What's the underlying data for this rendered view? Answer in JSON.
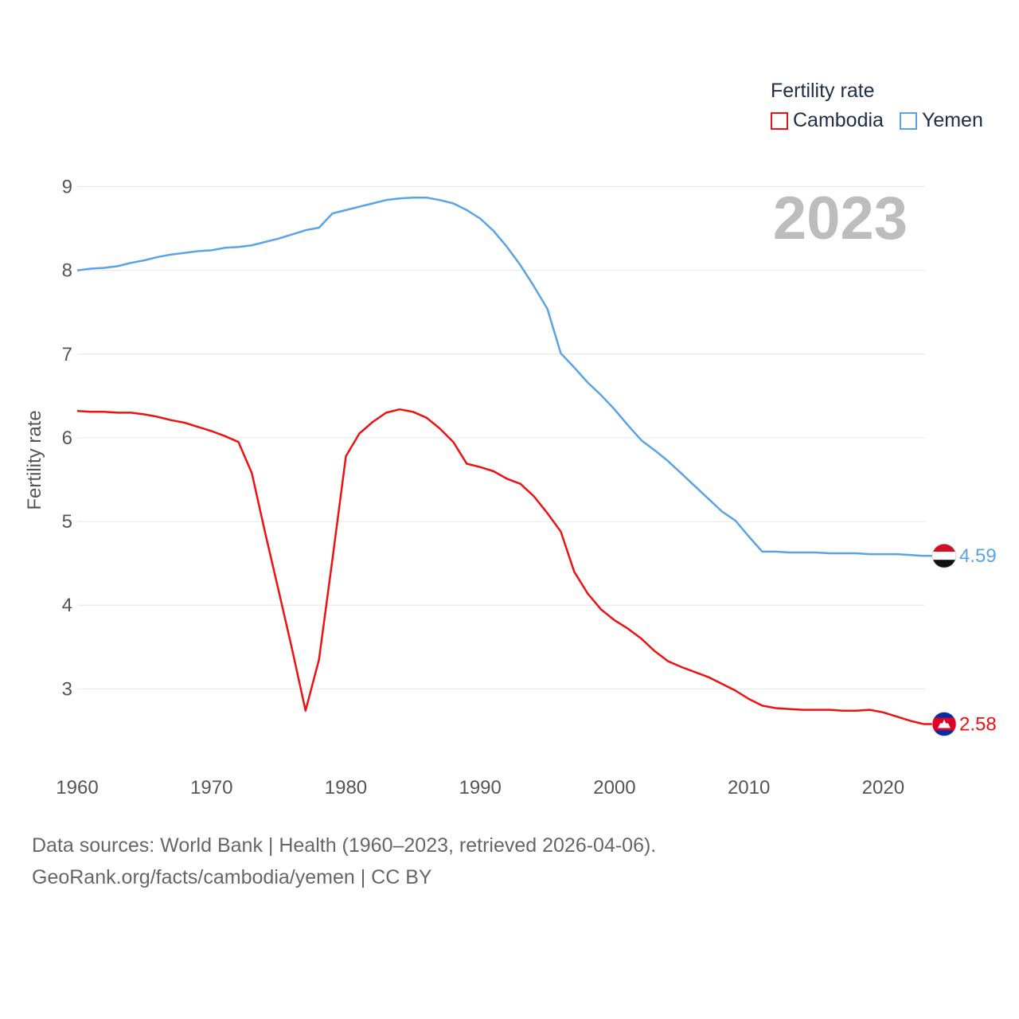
{
  "colors": {
    "cambodia": "#ee1111",
    "yemen": "#5aa3e6",
    "grid": "#e6e6e6",
    "text": "#555555"
  },
  "legend": {
    "title": "Fertility rate",
    "items": [
      {
        "label": "Cambodia",
        "color": "#ee1111"
      },
      {
        "label": "Yemen",
        "color": "#5aa3e6"
      }
    ]
  },
  "sources": {
    "line1": "Data sources: World Bank | Health (1960–2023, retrieved 2026-04-06).",
    "line2": "GeoRank.org/facts/cambodia/yemen | CC BY"
  },
  "chart_data": {
    "type": "line",
    "title": "Fertility rate",
    "year_label": "2023",
    "xlabel": "",
    "ylabel": "Fertility rate",
    "xlim": [
      1960,
      2023
    ],
    "ylim": [
      2,
      9
    ],
    "xticks": [
      1960,
      1970,
      1980,
      1990,
      2000,
      2010,
      2020
    ],
    "yticks": [
      3,
      4,
      5,
      6,
      7,
      8,
      9
    ],
    "grid": true,
    "legend_position": "top-right",
    "x": [
      1960,
      1961,
      1962,
      1963,
      1964,
      1965,
      1966,
      1967,
      1968,
      1969,
      1970,
      1971,
      1972,
      1973,
      1974,
      1975,
      1976,
      1977,
      1978,
      1979,
      1980,
      1981,
      1982,
      1983,
      1984,
      1985,
      1986,
      1987,
      1988,
      1989,
      1990,
      1991,
      1992,
      1993,
      1994,
      1995,
      1996,
      1997,
      1998,
      1999,
      2000,
      2001,
      2002,
      2003,
      2004,
      2005,
      2006,
      2007,
      2008,
      2009,
      2010,
      2011,
      2012,
      2013,
      2014,
      2015,
      2016,
      2017,
      2018,
      2019,
      2020,
      2021,
      2022,
      2023
    ],
    "series": [
      {
        "name": "Cambodia",
        "color": "#ee1111",
        "end_label": "2.58",
        "values": [
          6.32,
          6.31,
          6.31,
          6.3,
          6.3,
          6.28,
          6.25,
          6.21,
          6.18,
          6.13,
          6.08,
          6.02,
          5.95,
          5.58,
          4.86,
          4.17,
          3.47,
          2.74,
          3.35,
          4.55,
          5.78,
          6.05,
          6.19,
          6.3,
          6.34,
          6.31,
          6.24,
          6.11,
          5.95,
          5.69,
          5.65,
          5.6,
          5.51,
          5.45,
          5.3,
          5.1,
          4.88,
          4.4,
          4.14,
          3.95,
          3.82,
          3.72,
          3.6,
          3.45,
          3.33,
          3.26,
          3.2,
          3.14,
          3.06,
          2.98,
          2.88,
          2.8,
          2.77,
          2.76,
          2.75,
          2.75,
          2.75,
          2.74,
          2.74,
          2.75,
          2.72,
          2.67,
          2.62,
          2.58
        ]
      },
      {
        "name": "Yemen",
        "color": "#5aa3e6",
        "end_label": "4.59",
        "values": [
          8.0,
          8.02,
          8.03,
          8.05,
          8.09,
          8.12,
          8.16,
          8.19,
          8.21,
          8.23,
          8.24,
          8.27,
          8.28,
          8.3,
          8.34,
          8.38,
          8.43,
          8.48,
          8.51,
          8.68,
          8.72,
          8.76,
          8.8,
          8.84,
          8.86,
          8.87,
          8.87,
          8.84,
          8.8,
          8.72,
          8.62,
          8.47,
          8.28,
          8.06,
          7.81,
          7.54,
          7.01,
          6.84,
          6.66,
          6.51,
          6.34,
          6.15,
          5.97,
          5.85,
          5.72,
          5.57,
          5.42,
          5.27,
          5.12,
          5.01,
          4.82,
          4.64,
          4.64,
          4.63,
          4.63,
          4.63,
          4.62,
          4.62,
          4.62,
          4.61,
          4.61,
          4.61,
          4.6,
          4.59
        ]
      }
    ]
  }
}
